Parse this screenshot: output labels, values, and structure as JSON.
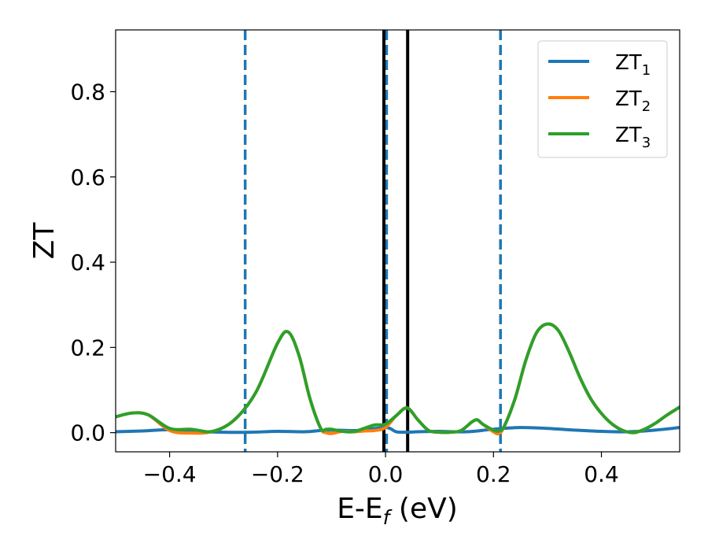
{
  "chart_data": {
    "type": "line",
    "title": "",
    "xlabel": "E-E",
    "xlabel_sub": "f",
    "xlabel_unit": " (eV)",
    "ylabel": "ZT",
    "xlim": [
      -0.5,
      0.545
    ],
    "ylim": [
      -0.045,
      0.945
    ],
    "xticks": [
      -0.4,
      -0.2,
      0.0,
      0.2,
      0.4
    ],
    "xtick_labels": [
      "−0.4",
      "−0.2",
      "0.0",
      "0.2",
      "0.4"
    ],
    "yticks": [
      0.0,
      0.2,
      0.4,
      0.6,
      0.8
    ],
    "ytick_labels": [
      "0.0",
      "0.2",
      "0.4",
      "0.6",
      "0.8"
    ],
    "grid": false,
    "legend_position": "top-right",
    "series": [
      {
        "name": "ZT",
        "sub": "1",
        "color": "#1f77b4",
        "x": [
          -0.5,
          -0.45,
          -0.4,
          -0.35,
          -0.3,
          -0.25,
          -0.2,
          -0.15,
          -0.12,
          -0.1,
          -0.05,
          0.0,
          0.02,
          0.04,
          0.06,
          0.1,
          0.15,
          0.2,
          0.25,
          0.3,
          0.35,
          0.4,
          0.45,
          0.5,
          0.545
        ],
        "y": [
          0.002,
          0.004,
          0.007,
          0.003,
          0.001,
          0.001,
          0.003,
          0.002,
          0.005,
          0.006,
          0.005,
          0.012,
          0.002,
          0.001,
          0.002,
          0.003,
          0.002,
          0.008,
          0.012,
          0.01,
          0.006,
          0.003,
          0.002,
          0.006,
          0.012
        ]
      },
      {
        "name": "ZT",
        "sub": "2",
        "color": "#ff7f0e",
        "x": [
          -0.5,
          -0.47,
          -0.44,
          -0.4,
          -0.36,
          -0.32,
          -0.28,
          -0.24,
          -0.2,
          -0.18,
          -0.16,
          -0.14,
          -0.12,
          -0.11,
          -0.1,
          -0.08,
          -0.06,
          -0.04,
          -0.02,
          0.0,
          0.02,
          0.04,
          0.06,
          0.08,
          0.1,
          0.12,
          0.14,
          0.16,
          0.17,
          0.18,
          0.2,
          0.21,
          0.22,
          0.24,
          0.26,
          0.28,
          0.3,
          0.32,
          0.34,
          0.36,
          0.38,
          0.4,
          0.42,
          0.44,
          0.46,
          0.48,
          0.5,
          0.52,
          0.545
        ],
        "y": [
          0.037,
          0.046,
          0.042,
          0.005,
          -0.001,
          0.003,
          0.03,
          0.095,
          0.21,
          0.236,
          0.18,
          0.08,
          0.01,
          0.0,
          -0.002,
          0.003,
          0.002,
          0.004,
          0.005,
          0.012,
          0.04,
          0.058,
          0.03,
          0.005,
          0.001,
          0.001,
          0.005,
          0.025,
          0.03,
          0.02,
          0.002,
          -0.002,
          0.015,
          0.08,
          0.17,
          0.235,
          0.255,
          0.24,
          0.19,
          0.13,
          0.08,
          0.045,
          0.02,
          0.005,
          0.0,
          0.008,
          0.022,
          0.04,
          0.06
        ]
      },
      {
        "name": "ZT",
        "sub": "3",
        "color": "#2ca02c",
        "x": [
          -0.5,
          -0.47,
          -0.44,
          -0.4,
          -0.36,
          -0.32,
          -0.28,
          -0.24,
          -0.2,
          -0.18,
          -0.16,
          -0.14,
          -0.12,
          -0.11,
          -0.1,
          -0.08,
          -0.06,
          -0.04,
          -0.02,
          0.0,
          0.02,
          0.04,
          0.06,
          0.08,
          0.1,
          0.12,
          0.14,
          0.16,
          0.17,
          0.18,
          0.2,
          0.21,
          0.22,
          0.24,
          0.26,
          0.28,
          0.3,
          0.32,
          0.34,
          0.36,
          0.38,
          0.4,
          0.42,
          0.44,
          0.46,
          0.48,
          0.5,
          0.52,
          0.545
        ],
        "y": [
          0.037,
          0.046,
          0.042,
          0.01,
          0.008,
          0.003,
          0.03,
          0.095,
          0.21,
          0.236,
          0.18,
          0.08,
          0.01,
          0.008,
          0.008,
          0.003,
          0.002,
          0.01,
          0.018,
          0.02,
          0.04,
          0.058,
          0.03,
          0.005,
          0.001,
          0.001,
          0.005,
          0.025,
          0.03,
          0.02,
          0.006,
          0.004,
          0.015,
          0.08,
          0.17,
          0.235,
          0.255,
          0.24,
          0.19,
          0.13,
          0.08,
          0.045,
          0.02,
          0.005,
          0.0,
          0.008,
          0.022,
          0.04,
          0.06
        ]
      }
    ],
    "vlines": [
      {
        "x": -0.26,
        "style": "dashed",
        "color": "#1f77b4"
      },
      {
        "x": 0.002,
        "style": "dashed",
        "color": "#1f77b4"
      },
      {
        "x": 0.213,
        "style": "dashed",
        "color": "#1f77b4"
      },
      {
        "x": -0.003,
        "style": "solid",
        "color": "#000000"
      },
      {
        "x": 0.041,
        "style": "solid",
        "color": "#000000"
      }
    ]
  }
}
